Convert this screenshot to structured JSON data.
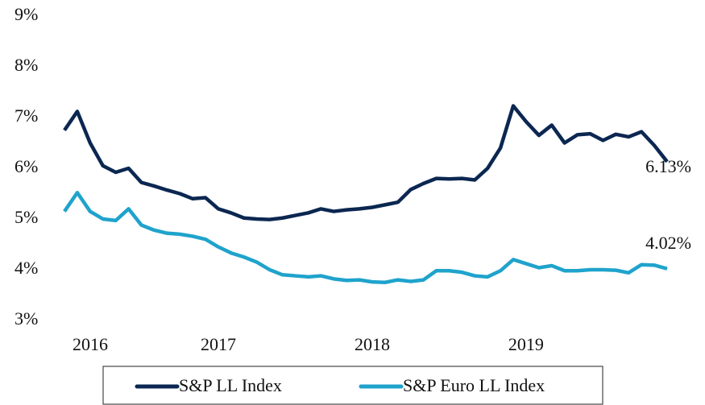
{
  "chart_data": {
    "type": "line",
    "categories": [
      "2016",
      null,
      null,
      null,
      null,
      null,
      null,
      null,
      null,
      null,
      null,
      null,
      "2017",
      null,
      null,
      null,
      null,
      null,
      null,
      null,
      null,
      null,
      null,
      null,
      "2018",
      null,
      null,
      null,
      null,
      null,
      null,
      null,
      null,
      null,
      null,
      null,
      "2019",
      null,
      null,
      null,
      null,
      null,
      null,
      null,
      null,
      null,
      null,
      null
    ],
    "series": [
      {
        "name": "S&P LL Index",
        "color": "#0b2751",
        "end_label": "6.13%",
        "values": [
          6.75,
          7.12,
          6.5,
          6.05,
          5.92,
          6.0,
          5.72,
          5.65,
          5.57,
          5.5,
          5.4,
          5.42,
          5.2,
          5.12,
          5.02,
          5.0,
          4.99,
          5.02,
          5.07,
          5.12,
          5.2,
          5.15,
          5.18,
          5.2,
          5.23,
          5.28,
          5.33,
          5.58,
          5.7,
          5.8,
          5.79,
          5.8,
          5.77,
          6.0,
          6.4,
          7.23,
          6.92,
          6.65,
          6.85,
          6.5,
          6.66,
          6.68,
          6.55,
          6.67,
          6.62,
          6.72,
          6.45,
          6.13
        ]
      },
      {
        "name": "S&P Euro LL Index",
        "color": "#1fa3cc",
        "end_label": "4.02%",
        "values": [
          5.15,
          5.52,
          5.15,
          5.0,
          4.97,
          5.2,
          4.88,
          4.78,
          4.72,
          4.7,
          4.66,
          4.6,
          4.45,
          4.33,
          4.25,
          4.15,
          4.0,
          3.9,
          3.88,
          3.86,
          3.88,
          3.82,
          3.79,
          3.8,
          3.76,
          3.75,
          3.8,
          3.77,
          3.8,
          3.98,
          3.98,
          3.95,
          3.88,
          3.86,
          3.98,
          4.2,
          4.12,
          4.04,
          4.08,
          3.98,
          3.98,
          4.0,
          4.0,
          3.99,
          3.94,
          4.1,
          4.09,
          4.02
        ]
      }
    ],
    "ylim": [
      3,
      9
    ],
    "yticks": [
      {
        "value": 3,
        "label": "3%"
      },
      {
        "value": 4,
        "label": "4%"
      },
      {
        "value": 5,
        "label": "5%"
      },
      {
        "value": 6,
        "label": "6%"
      },
      {
        "value": 7,
        "label": "7%"
      },
      {
        "value": 8,
        "label": "8%"
      },
      {
        "value": 9,
        "label": "9%"
      }
    ],
    "grid": false,
    "legend": "bottom"
  }
}
